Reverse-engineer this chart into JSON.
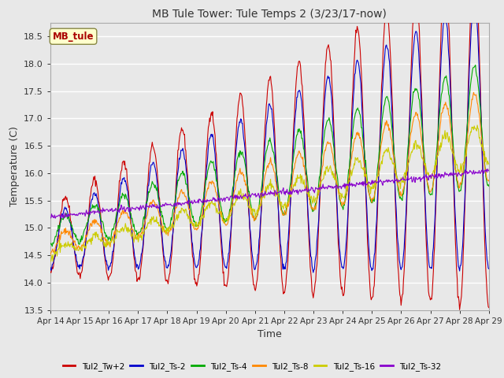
{
  "title": "MB Tule Tower: Tule Temps 2 (3/23/17-now)",
  "xlabel": "Time",
  "ylabel": "Temperature (C)",
  "ylim": [
    13.5,
    18.75
  ],
  "yticks": [
    13.5,
    14.0,
    14.5,
    15.0,
    15.5,
    16.0,
    16.5,
    17.0,
    17.5,
    18.0,
    18.5
  ],
  "xtick_labels": [
    "Apr 14",
    "Apr 15",
    "Apr 16",
    "Apr 17",
    "Apr 18",
    "Apr 19",
    "Apr 20",
    "Apr 21",
    "Apr 22",
    "Apr 23",
    "Apr 24",
    "Apr 25",
    "Apr 26",
    "Apr 27",
    "Apr 28",
    "Apr 29"
  ],
  "legend_label": "MB_tule",
  "series_colors": [
    "#cc0000",
    "#0000cc",
    "#00aa00",
    "#ff8800",
    "#cccc00",
    "#8800cc"
  ],
  "series_names": [
    "Tul2_Tw+2",
    "Tul2_Ts-2",
    "Tul2_Ts-4",
    "Tul2_Ts-8",
    "Tul2_Ts-16",
    "Tul2_Ts-32"
  ],
  "background_color": "#e8e8e8",
  "plot_bg_color": "#e8e8e8",
  "grid_color": "#ffffff"
}
